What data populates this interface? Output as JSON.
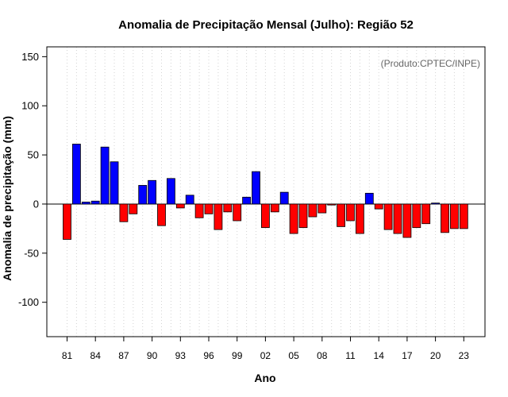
{
  "chart_data": {
    "type": "bar",
    "title": "Anomalia de Precipitação Mensal (Julho): Região 52",
    "xlabel": "Ano",
    "ylabel": "Anomalia de precipitação (mm)",
    "source_note": "(Produto:CPTEC/INPE)",
    "ylim": [
      -135,
      160
    ],
    "yticks": [
      -100,
      -50,
      0,
      50,
      100,
      150
    ],
    "ytick_labels": [
      "-100",
      "-50",
      "0",
      "50",
      "100",
      "150"
    ],
    "xtick_years": [
      1981,
      1984,
      1987,
      1990,
      1993,
      1996,
      1999,
      2002,
      2005,
      2008,
      2011,
      2014,
      2017,
      2020,
      2023
    ],
    "xtick_labels": [
      "81",
      "84",
      "87",
      "90",
      "93",
      "96",
      "99",
      "02",
      "05",
      "08",
      "11",
      "14",
      "17",
      "20",
      "23"
    ],
    "positive_color": "#0000ff",
    "negative_color": "#ff0000",
    "years": [
      1981,
      1982,
      1983,
      1984,
      1985,
      1986,
      1987,
      1988,
      1989,
      1990,
      1991,
      1992,
      1993,
      1994,
      1995,
      1996,
      1997,
      1998,
      1999,
      2000,
      2001,
      2002,
      2003,
      2004,
      2005,
      2006,
      2007,
      2008,
      2009,
      2010,
      2011,
      2012,
      2013,
      2014,
      2015,
      2016,
      2017,
      2018,
      2019,
      2020,
      2021,
      2022,
      2023
    ],
    "values": [
      -36,
      61,
      2,
      3,
      58,
      43,
      -18,
      -10,
      19,
      24,
      -22,
      26,
      -4,
      9,
      -14,
      -10,
      -26,
      -8,
      -17,
      7,
      33,
      -24,
      -8,
      12,
      -30,
      -24,
      -13,
      -9,
      -1,
      -23,
      -17,
      -30,
      11,
      -5,
      -26,
      -30,
      -34,
      -24,
      -20,
      1,
      -29,
      -25,
      -25
    ]
  }
}
